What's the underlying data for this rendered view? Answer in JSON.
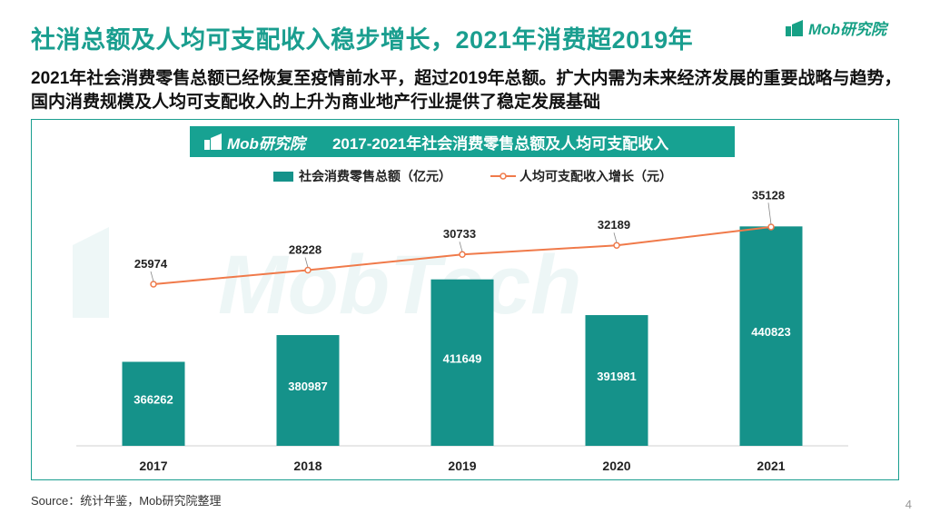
{
  "header": {
    "title": "社消总额及人均可支配收入稳步增长，2021年消费超2019年",
    "logo_text": "Mob研究院"
  },
  "subtitle": "2021年社会消费零售总额已经恢复至疫情前水平，超过2019年总额。扩大内需为未来经济发展的重要战略与趋势，国内消费规模及人均可支配收入的上升为商业地产行业提供了稳定发展基础",
  "banner": {
    "logo_text": "Mob研究院",
    "title": "2017-2021年社会消费零售总额及人均可支配收入"
  },
  "colors": {
    "accent": "#1a9e8f",
    "bar": "#15928a",
    "line": "#f07a4a"
  },
  "chart_data": {
    "type": "bar",
    "title": "2017-2021年社会消费零售总额及人均可支配收入",
    "categories": [
      "2017",
      "2018",
      "2019",
      "2020",
      "2021"
    ],
    "series": [
      {
        "name": "社会消费零售总额（亿元）",
        "type": "bar",
        "values": [
          366262,
          380987,
          411649,
          391981,
          440823
        ]
      },
      {
        "name": "人均可支配收入增长（元）",
        "type": "line",
        "values": [
          25974,
          28228,
          30733,
          32189,
          35128
        ]
      }
    ],
    "legend_position": "top",
    "grid": false
  },
  "footer": {
    "source": "Source：统计年鉴，Mob研究院整理",
    "page": "4"
  }
}
